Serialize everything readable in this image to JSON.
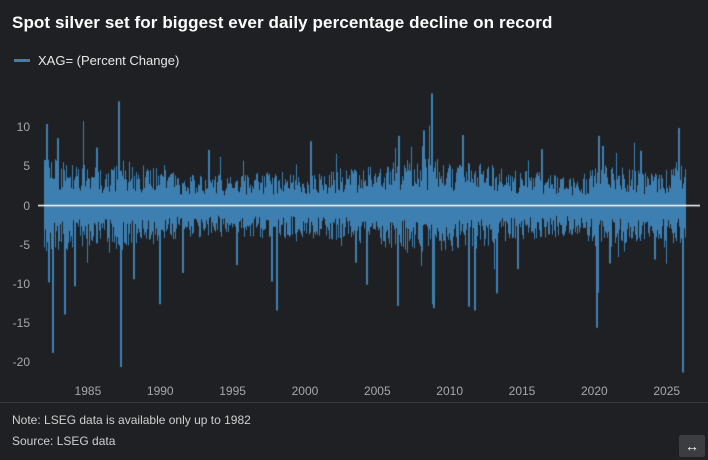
{
  "header": {
    "title": "Spot silver set for biggest ever daily percentage decline on record"
  },
  "legend": {
    "label": "XAG= (Percent Change)",
    "color": "#3E7FB1"
  },
  "footer": {
    "note": "Note: LSEG data is available only up to 1982",
    "source": "Source: LSEG data",
    "resize_icon": "↔"
  },
  "colors": {
    "background": "#1F2023",
    "title_text": "#FFFFFF",
    "axis_text": "#A7A7AB",
    "bar": "#3E7FB1",
    "zero_line": "#FFFFFF",
    "divider": "#3A3B3F"
  },
  "chart_data": {
    "type": "bar",
    "title": "Spot silver set for biggest ever daily percentage decline on record",
    "series_name": "XAG= (Percent Change)",
    "unit": "daily percent change",
    "x_domain": [
      1981.55,
      2027.3
    ],
    "data_range": [
      1982.0,
      2026.2
    ],
    "x_ticks": [
      1985,
      1990,
      1995,
      2000,
      2005,
      2010,
      2015,
      2020,
      2025
    ],
    "y_ticks": [
      10,
      5,
      0,
      -5,
      -10,
      -15,
      -20
    ],
    "ylim": [
      -22,
      15
    ],
    "zero_line": true,
    "grid": false,
    "legend_position": "top-left",
    "seed": 1982,
    "volatility_envelope": [
      {
        "x": 1982,
        "v": 2.9
      },
      {
        "x": 1984,
        "v": 2.5
      },
      {
        "x": 1986,
        "v": 2.2
      },
      {
        "x": 1987.5,
        "v": 2.7
      },
      {
        "x": 1989,
        "v": 2.3
      },
      {
        "x": 1992,
        "v": 1.9
      },
      {
        "x": 1995,
        "v": 1.8
      },
      {
        "x": 1998,
        "v": 2.0
      },
      {
        "x": 2001,
        "v": 1.9
      },
      {
        "x": 2004,
        "v": 2.2
      },
      {
        "x": 2006,
        "v": 2.5
      },
      {
        "x": 2008.8,
        "v": 2.9
      },
      {
        "x": 2010,
        "v": 2.5
      },
      {
        "x": 2012,
        "v": 2.5
      },
      {
        "x": 2014,
        "v": 2.1
      },
      {
        "x": 2017,
        "v": 1.9
      },
      {
        "x": 2019,
        "v": 1.7
      },
      {
        "x": 2020.3,
        "v": 2.6
      },
      {
        "x": 2022,
        "v": 2.2
      },
      {
        "x": 2024,
        "v": 2.0
      },
      {
        "x": 2026.2,
        "v": 2.4
      }
    ],
    "notable_points": [
      {
        "x": 1982.15,
        "y": 10.4
      },
      {
        "x": 1982.3,
        "y": -9.8
      },
      {
        "x": 1982.6,
        "y": -18.8
      },
      {
        "x": 1982.9,
        "y": 8.6
      },
      {
        "x": 1983.4,
        "y": -13.9
      },
      {
        "x": 1984.1,
        "y": -10.3
      },
      {
        "x": 1985.6,
        "y": 7.4
      },
      {
        "x": 1987.15,
        "y": 13.3
      },
      {
        "x": 1987.3,
        "y": -20.6
      },
      {
        "x": 1988.2,
        "y": -9.4
      },
      {
        "x": 1990.0,
        "y": -12.6
      },
      {
        "x": 1991.6,
        "y": -8.6
      },
      {
        "x": 1993.4,
        "y": 7.1
      },
      {
        "x": 1995.3,
        "y": -7.6
      },
      {
        "x": 1997.7,
        "y": -9.7
      },
      {
        "x": 1998.1,
        "y": -13.4
      },
      {
        "x": 2000.4,
        "y": 8.2
      },
      {
        "x": 2003.5,
        "y": -7.3
      },
      {
        "x": 2004.3,
        "y": -10.1
      },
      {
        "x": 2006.4,
        "y": -12.8
      },
      {
        "x": 2006.5,
        "y": 8.9
      },
      {
        "x": 2008.2,
        "y": 9.6
      },
      {
        "x": 2008.75,
        "y": 14.3
      },
      {
        "x": 2008.85,
        "y": -12.6
      },
      {
        "x": 2008.95,
        "y": -13.1
      },
      {
        "x": 2010.9,
        "y": 9.0
      },
      {
        "x": 2011.35,
        "y": -12.9
      },
      {
        "x": 2011.75,
        "y": -13.4
      },
      {
        "x": 2013.3,
        "y": -11.2
      },
      {
        "x": 2014.7,
        "y": -8.1
      },
      {
        "x": 2016.4,
        "y": 7.2
      },
      {
        "x": 2020.2,
        "y": -15.6
      },
      {
        "x": 2020.3,
        "y": 8.9
      },
      {
        "x": 2020.6,
        "y": 7.6
      },
      {
        "x": 2021.1,
        "y": -7.4
      },
      {
        "x": 2023.2,
        "y": 7.0
      },
      {
        "x": 2024.2,
        "y": -6.9
      },
      {
        "x": 2025.85,
        "y": 9.9
      },
      {
        "x": 2026.1,
        "y": -21.3
      }
    ]
  }
}
